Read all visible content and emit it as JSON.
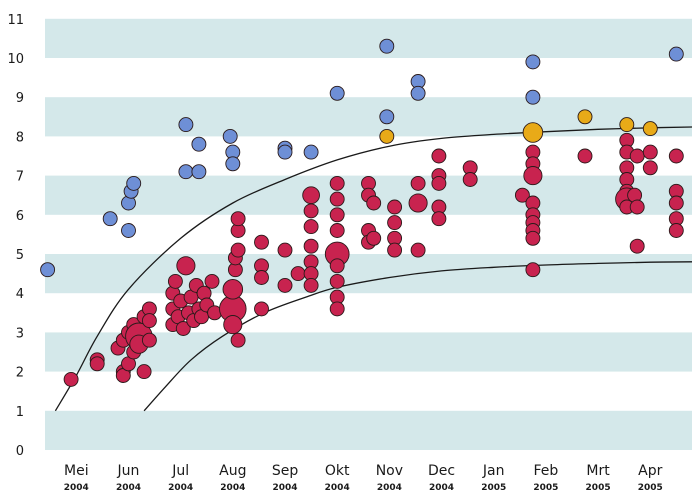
{
  "colors": {
    "band": "#d4e8ea",
    "background": "#ffffff",
    "red": "#c8234f",
    "blue": "#6e8fd6",
    "orange": "#e8aa18",
    "outline": "#2a1a1a",
    "curve": "#1a1a1a"
  },
  "chart_data": {
    "type": "scatter",
    "grid": "alternating horizontal bands",
    "ylim": [
      0,
      11
    ],
    "yticks": [
      "0",
      "1",
      "2",
      "3",
      "4",
      "5",
      "6",
      "7",
      "8",
      "9",
      "10",
      "11"
    ],
    "xlim": [
      0,
      12.4
    ],
    "months": [
      {
        "label": "Mei",
        "year": "2004",
        "x": 0.6
      },
      {
        "label": "Jun",
        "year": "2004",
        "x": 1.6
      },
      {
        "label": "Jul",
        "year": "2004",
        "x": 2.6
      },
      {
        "label": "Aug",
        "year": "2004",
        "x": 3.6
      },
      {
        "label": "Sep",
        "year": "2004",
        "x": 4.6
      },
      {
        "label": "Okt",
        "year": "2004",
        "x": 5.6
      },
      {
        "label": "Nov",
        "year": "2004",
        "x": 6.6
      },
      {
        "label": "Dec",
        "year": "2004",
        "x": 7.6
      },
      {
        "label": "Jan",
        "year": "2005",
        "x": 8.6
      },
      {
        "label": "Feb",
        "year": "2005",
        "x": 9.6
      },
      {
        "label": "Mrt",
        "year": "2005",
        "x": 10.6
      },
      {
        "label": "Apr",
        "year": "2005",
        "x": 11.6
      }
    ],
    "series": [
      {
        "color": "red",
        "points": [
          [
            0.5,
            1.8,
            1
          ],
          [
            1.0,
            2.3,
            1
          ],
          [
            1.0,
            2.2,
            1
          ],
          [
            1.4,
            2.6,
            1
          ],
          [
            1.5,
            2.0,
            1
          ],
          [
            1.5,
            1.9,
            1
          ],
          [
            1.5,
            2.8,
            1
          ],
          [
            1.6,
            3.0,
            1
          ],
          [
            1.6,
            2.2,
            1
          ],
          [
            1.7,
            2.5,
            1
          ],
          [
            1.7,
            3.2,
            1
          ],
          [
            1.8,
            2.9,
            1.9
          ],
          [
            1.8,
            2.7,
            1.3
          ],
          [
            1.9,
            3.4,
            1
          ],
          [
            1.9,
            2.0,
            1
          ],
          [
            2.0,
            2.8,
            1
          ],
          [
            2.0,
            3.6,
            1
          ],
          [
            2.0,
            3.3,
            1
          ],
          [
            2.45,
            3.2,
            1
          ],
          [
            2.45,
            3.6,
            1
          ],
          [
            2.45,
            4.0,
            1
          ],
          [
            2.5,
            4.3,
            1
          ],
          [
            2.55,
            3.4,
            1
          ],
          [
            2.6,
            3.8,
            1
          ],
          [
            2.65,
            3.1,
            1
          ],
          [
            2.7,
            4.7,
            1.3
          ],
          [
            2.75,
            3.5,
            1
          ],
          [
            2.8,
            3.9,
            1
          ],
          [
            2.85,
            3.3,
            1
          ],
          [
            2.9,
            4.2,
            1
          ],
          [
            2.95,
            3.6,
            1
          ],
          [
            3.0,
            3.4,
            1
          ],
          [
            3.05,
            4.0,
            1
          ],
          [
            3.1,
            3.7,
            1
          ],
          [
            3.2,
            4.3,
            1
          ],
          [
            3.25,
            3.5,
            1
          ],
          [
            3.6,
            3.6,
            1.9
          ],
          [
            3.6,
            4.1,
            1.4
          ],
          [
            3.6,
            3.2,
            1.3
          ],
          [
            3.65,
            4.6,
            1
          ],
          [
            3.65,
            4.9,
            1
          ],
          [
            3.7,
            5.1,
            1
          ],
          [
            3.7,
            2.8,
            1
          ],
          [
            3.7,
            5.6,
            1
          ],
          [
            3.7,
            5.9,
            1
          ],
          [
            4.15,
            5.3,
            1
          ],
          [
            4.15,
            4.7,
            1
          ],
          [
            4.15,
            4.4,
            1
          ],
          [
            4.15,
            3.6,
            1
          ],
          [
            4.6,
            5.1,
            1
          ],
          [
            4.6,
            4.2,
            1
          ],
          [
            4.85,
            4.5,
            1
          ],
          [
            5.1,
            6.5,
            1.2
          ],
          [
            5.1,
            6.1,
            1
          ],
          [
            5.1,
            5.7,
            1
          ],
          [
            5.1,
            5.2,
            1
          ],
          [
            5.1,
            4.8,
            1
          ],
          [
            5.1,
            4.5,
            1
          ],
          [
            5.1,
            4.2,
            1
          ],
          [
            5.6,
            6.8,
            1
          ],
          [
            5.6,
            6.4,
            1
          ],
          [
            5.6,
            6.0,
            1
          ],
          [
            5.6,
            5.6,
            1
          ],
          [
            5.6,
            5.0,
            1.7
          ],
          [
            5.6,
            4.7,
            1
          ],
          [
            5.6,
            4.3,
            1
          ],
          [
            5.6,
            3.9,
            1
          ],
          [
            5.6,
            3.6,
            1
          ],
          [
            6.2,
            6.8,
            1
          ],
          [
            6.2,
            6.5,
            1
          ],
          [
            6.2,
            5.6,
            1
          ],
          [
            6.2,
            5.3,
            1
          ],
          [
            6.3,
            6.3,
            1
          ],
          [
            6.3,
            5.4,
            1
          ],
          [
            6.7,
            6.2,
            1
          ],
          [
            6.7,
            5.8,
            1
          ],
          [
            6.7,
            5.4,
            1
          ],
          [
            6.7,
            5.1,
            1
          ],
          [
            7.15,
            6.8,
            1
          ],
          [
            7.15,
            6.3,
            1.3
          ],
          [
            7.15,
            5.1,
            1
          ],
          [
            7.55,
            7.5,
            1
          ],
          [
            7.55,
            7.0,
            1
          ],
          [
            7.55,
            6.8,
            1
          ],
          [
            7.55,
            6.2,
            1
          ],
          [
            7.55,
            5.9,
            1
          ],
          [
            8.15,
            7.2,
            1
          ],
          [
            8.15,
            6.9,
            1
          ],
          [
            9.15,
            6.5,
            1
          ],
          [
            9.35,
            7.6,
            1
          ],
          [
            9.35,
            7.3,
            1
          ],
          [
            9.35,
            7.0,
            1.3
          ],
          [
            9.35,
            6.3,
            1
          ],
          [
            9.35,
            6.0,
            1
          ],
          [
            9.35,
            5.8,
            1
          ],
          [
            9.35,
            5.6,
            1
          ],
          [
            9.35,
            5.4,
            1
          ],
          [
            9.35,
            4.6,
            1
          ],
          [
            10.35,
            7.5,
            1
          ],
          [
            11.15,
            7.9,
            1
          ],
          [
            11.15,
            7.6,
            1
          ],
          [
            11.15,
            7.2,
            1
          ],
          [
            11.15,
            6.9,
            1
          ],
          [
            11.15,
            6.6,
            1
          ],
          [
            11.15,
            6.4,
            1.6
          ],
          [
            11.15,
            6.2,
            1
          ],
          [
            11.3,
            6.5,
            1
          ],
          [
            11.35,
            6.2,
            1
          ],
          [
            11.35,
            7.5,
            1
          ],
          [
            11.35,
            5.2,
            1
          ],
          [
            11.6,
            7.6,
            1
          ],
          [
            11.6,
            7.2,
            1
          ],
          [
            12.1,
            7.5,
            1
          ],
          [
            12.1,
            6.6,
            1
          ],
          [
            12.1,
            6.3,
            1
          ],
          [
            12.1,
            5.9,
            1
          ],
          [
            12.1,
            5.6,
            1
          ]
        ]
      },
      {
        "color": "blue",
        "points": [
          [
            0.05,
            4.6,
            1
          ],
          [
            1.25,
            5.9,
            1
          ],
          [
            1.6,
            5.6,
            1
          ],
          [
            1.6,
            6.3,
            1
          ],
          [
            1.65,
            6.6,
            1
          ],
          [
            1.7,
            6.8,
            1
          ],
          [
            2.7,
            8.3,
            1
          ],
          [
            2.7,
            7.1,
            1
          ],
          [
            2.95,
            7.8,
            1
          ],
          [
            2.95,
            7.1,
            1
          ],
          [
            3.55,
            8.0,
            1
          ],
          [
            3.6,
            7.6,
            1
          ],
          [
            3.6,
            7.3,
            1
          ],
          [
            4.6,
            7.7,
            1
          ],
          [
            4.6,
            7.6,
            1
          ],
          [
            5.1,
            7.6,
            1
          ],
          [
            5.6,
            9.1,
            1
          ],
          [
            6.55,
            10.3,
            1
          ],
          [
            6.55,
            8.5,
            1
          ],
          [
            7.15,
            9.4,
            1
          ],
          [
            7.15,
            9.1,
            1
          ],
          [
            9.35,
            9.9,
            1
          ],
          [
            9.35,
            9.0,
            1
          ],
          [
            12.1,
            10.1,
            1
          ]
        ]
      },
      {
        "color": "orange",
        "points": [
          [
            6.55,
            8.0,
            1
          ],
          [
            9.35,
            8.1,
            1.4
          ],
          [
            10.35,
            8.5,
            1
          ],
          [
            11.15,
            8.3,
            1
          ],
          [
            11.6,
            8.2,
            1
          ]
        ]
      }
    ],
    "curves": [
      {
        "points": [
          [
            0.2,
            1.0
          ],
          [
            0.6,
            1.9
          ],
          [
            1.0,
            2.9
          ],
          [
            1.6,
            4.1
          ],
          [
            2.6,
            5.4
          ],
          [
            3.6,
            6.3
          ],
          [
            4.6,
            6.9
          ],
          [
            5.6,
            7.4
          ],
          [
            6.6,
            7.75
          ],
          [
            7.6,
            7.95
          ],
          [
            8.6,
            8.05
          ],
          [
            9.6,
            8.12
          ],
          [
            10.6,
            8.18
          ],
          [
            11.6,
            8.22
          ],
          [
            12.4,
            8.24
          ]
        ]
      },
      {
        "points": [
          [
            1.9,
            1.0
          ],
          [
            2.3,
            1.6
          ],
          [
            2.8,
            2.3
          ],
          [
            3.4,
            2.9
          ],
          [
            4.2,
            3.5
          ],
          [
            5.0,
            3.9
          ],
          [
            5.6,
            4.15
          ],
          [
            6.6,
            4.4
          ],
          [
            7.6,
            4.57
          ],
          [
            8.6,
            4.66
          ],
          [
            9.6,
            4.72
          ],
          [
            10.6,
            4.76
          ],
          [
            11.6,
            4.79
          ],
          [
            12.4,
            4.8
          ]
        ]
      }
    ]
  }
}
